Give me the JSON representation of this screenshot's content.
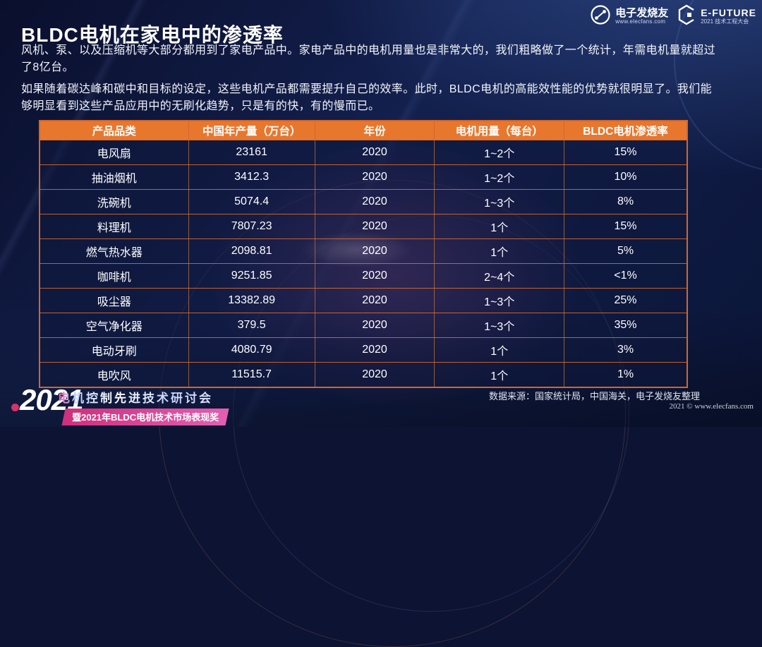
{
  "header": {
    "title": "BLDC电机在家电中的渗透率"
  },
  "logos": {
    "elecfans": {
      "name": "电子发烧友",
      "url": "www.elecfans.com"
    },
    "efuture": {
      "name": "E-FUTURE",
      "sub": "2021 技术工程大会"
    }
  },
  "paragraphs": [
    "风机、泵、以及压缩机等大部分都用到了家电产品中。家电产品中的电机用量也是非常大的，我们粗略做了一个统计，年需电机量就超过了8亿台。",
    "如果随着碳达峰和碳中和目标的设定，这些电机产品都需要提升自己的效率。此时，BLDC电机的高能效性能的优势就很明显了。我们能够明显看到这些产品应用中的无刷化趋势，只是有的快，有的慢而已。"
  ],
  "table": {
    "headers": [
      "产品品类",
      "中国年产量（万台）",
      "年份",
      "电机用量（每台）",
      "BLDC电机渗透率"
    ],
    "rows": [
      [
        "电风扇",
        "23161",
        "2020",
        "1~2个",
        "15%"
      ],
      [
        "抽油烟机",
        "3412.3",
        "2020",
        "1~2个",
        "10%"
      ],
      [
        "洗碗机",
        "5074.4",
        "2020",
        "1~3个",
        "8%"
      ],
      [
        "料理机",
        "7807.23",
        "2020",
        "1个",
        "15%"
      ],
      [
        "燃气热水器",
        "2098.81",
        "2020",
        "1个",
        "5%"
      ],
      [
        "咖啡机",
        "9251.85",
        "2020",
        "2~4个",
        "<1%"
      ],
      [
        "吸尘器",
        "13382.89",
        "2020",
        "1~3个",
        "25%"
      ],
      [
        "空气净化器",
        "379.5",
        "2020",
        "1~3个",
        "35%"
      ],
      [
        "电动牙刷",
        "4080.79",
        "2020",
        "1个",
        "3%"
      ],
      [
        "电吹风",
        "11515.7",
        "2020",
        "1个",
        "1%"
      ]
    ]
  },
  "footer": {
    "year": "2021",
    "event_title": "电机控制先进技术研讨会",
    "event_subtitle": "暨2021年BLDC电机技术市场表现奖",
    "data_source": "数据来源：国家统计局，中国海关，电子发烧友整理",
    "copyright": "2021 © www.elecfans.com"
  },
  "colors": {
    "header_orange": "#e8772e",
    "table_border_orange": "#d2662a",
    "accent_magenta": "#d5326e",
    "background_navy": "#0c1333"
  }
}
